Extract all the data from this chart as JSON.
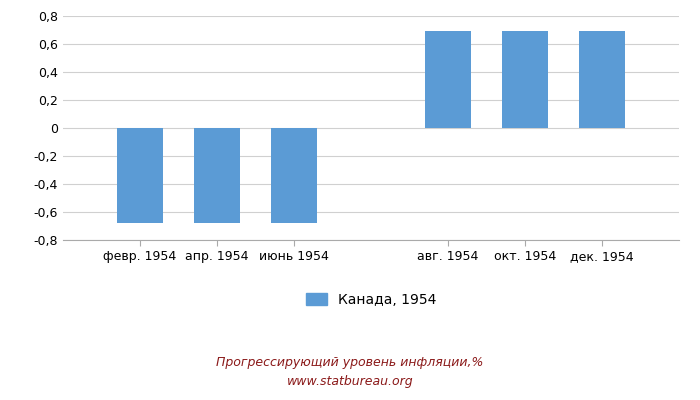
{
  "categories": [
    "февр. 1954",
    "апр. 1954",
    "июнь 1954",
    "авг. 1954",
    "окт. 1954",
    "дек. 1954"
  ],
  "x_positions": [
    1,
    2,
    3,
    5,
    6,
    7
  ],
  "x_tick_positions": [
    1,
    2,
    3,
    5,
    6,
    7
  ],
  "xlim": [
    0,
    8
  ],
  "values": [
    -0.68,
    -0.68,
    -0.68,
    0.69,
    0.69,
    0.69
  ],
  "bar_color": "#5b9bd5",
  "ylim": [
    -0.8,
    0.8
  ],
  "yticks": [
    -0.8,
    -0.6,
    -0.4,
    -0.2,
    0,
    0.2,
    0.4,
    0.6,
    0.8
  ],
  "legend_label": "Канада, 1954",
  "title_line1": "Прогрессирующий уровень инфляции,%",
  "title_line2": "www.statbureau.org",
  "title_color": "#8b1a1a",
  "background_color": "#ffffff",
  "grid_color": "#d0d0d0",
  "bar_width": 0.6,
  "tick_fontsize": 9,
  "legend_fontsize": 10,
  "footer_fontsize": 9
}
